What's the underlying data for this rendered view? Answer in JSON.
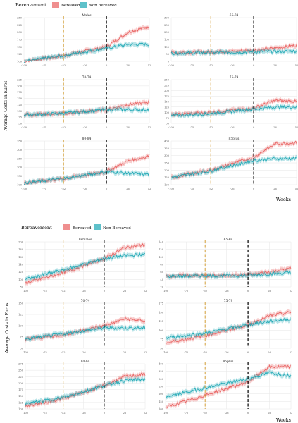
{
  "colors": {
    "bereaved": "#e8605f",
    "non_bereaved": "#1aa6b3",
    "vline_orange": "#d4a03a",
    "vline_black": "#000000",
    "grid": "#e6e6e6"
  },
  "figures": [
    {
      "legend_title": "Bereavement",
      "legend": [
        "Bereaved",
        "Non Bereaved"
      ],
      "ylabel": "Average Costs in Euros",
      "xlabel": "Weeks"
    },
    {
      "legend_title": "Bereavement",
      "legend": [
        "Bereaved",
        "Non Bereaved"
      ],
      "ylabel": "Average Costs in Euros",
      "xlabel": "Weeks"
    }
  ],
  "chart_data": [
    {
      "type": "line",
      "title": "Males",
      "x_ticks": [
        "-100",
        "-75",
        "-52",
        "-26",
        "0",
        "26",
        "52"
      ],
      "x_range": [
        -100,
        52
      ],
      "ylim": [
        100,
        250
      ],
      "y_ticks": [
        "100",
        "125",
        "150",
        "175",
        "200",
        "225",
        "250"
      ],
      "vlines": [
        -52,
        0
      ],
      "series": [
        {
          "name": "Bereaved",
          "points": [
            [
              -100,
              100
            ],
            [
              -52,
              120
            ],
            [
              0,
              150
            ],
            [
              26,
              200
            ],
            [
              52,
              220
            ]
          ]
        },
        {
          "name": "Non Bereaved",
          "points": [
            [
              -100,
              100
            ],
            [
              -52,
              120
            ],
            [
              0,
              145
            ],
            [
              26,
              158
            ],
            [
              52,
              158
            ]
          ]
        }
      ]
    },
    {
      "type": "line",
      "title": "65-69",
      "x_ticks": [
        "-100",
        "-75",
        "-52",
        "-26",
        "0",
        "26",
        "52"
      ],
      "x_range": [
        -100,
        52
      ],
      "ylim": [
        0,
        300
      ],
      "y_ticks": [
        "0",
        "50",
        "100",
        "150",
        "200",
        "250",
        "300"
      ],
      "vlines": [
        -52,
        0
      ],
      "series": [
        {
          "name": "Bereaved",
          "points": [
            [
              -100,
              60
            ],
            [
              -52,
              65
            ],
            [
              0,
              75
            ],
            [
              26,
              90
            ],
            [
              52,
              110
            ]
          ]
        },
        {
          "name": "Non Bereaved",
          "points": [
            [
              -100,
              55
            ],
            [
              -52,
              60
            ],
            [
              0,
              65
            ],
            [
              26,
              68
            ],
            [
              52,
              70
            ]
          ]
        }
      ]
    },
    {
      "type": "line",
      "title": "70-74",
      "x_ticks": [
        "-100",
        "-75",
        "-52",
        "-26",
        "0",
        "26",
        "52"
      ],
      "x_range": [
        -100,
        52
      ],
      "ylim": [
        50,
        225
      ],
      "y_ticks": [
        "50",
        "75",
        "100",
        "125",
        "150",
        "175",
        "200",
        "225"
      ],
      "vlines": [
        -52,
        0
      ],
      "series": [
        {
          "name": "Bereaved",
          "points": [
            [
              -100,
              85
            ],
            [
              -52,
              90
            ],
            [
              0,
              105
            ],
            [
              26,
              125
            ],
            [
              52,
              135
            ]
          ]
        },
        {
          "name": "Non Bereaved",
          "points": [
            [
              -100,
              85
            ],
            [
              -52,
              90
            ],
            [
              0,
              105
            ],
            [
              26,
              105
            ],
            [
              52,
              105
            ]
          ]
        }
      ]
    },
    {
      "type": "line",
      "title": "75-79",
      "x_ticks": [
        "-100",
        "-75",
        "-52",
        "-26",
        "0",
        "26",
        "52"
      ],
      "x_range": [
        -100,
        52
      ],
      "ylim": [
        50,
        250
      ],
      "y_ticks": [
        "50",
        "75",
        "100",
        "125",
        "150",
        "175",
        "200",
        "225",
        "250"
      ],
      "vlines": [
        -52,
        0
      ],
      "series": [
        {
          "name": "Bereaved",
          "points": [
            [
              -100,
              90
            ],
            [
              -52,
              100
            ],
            [
              0,
              120
            ],
            [
              26,
              155
            ],
            [
              52,
              150
            ]
          ]
        },
        {
          "name": "Non Bereaved",
          "points": [
            [
              -100,
              85
            ],
            [
              -52,
              95
            ],
            [
              0,
              115
            ],
            [
              26,
              125
            ],
            [
              52,
              125
            ]
          ]
        }
      ]
    },
    {
      "type": "line",
      "title": "80-84",
      "x_ticks": [
        "-100",
        "-75",
        "-52",
        "-26",
        "0",
        "26",
        "52"
      ],
      "x_range": [
        -100,
        52
      ],
      "ylim": [
        100,
        350
      ],
      "y_ticks": [
        "100",
        "150",
        "200",
        "250",
        "300",
        "350"
      ],
      "vlines": [
        -52,
        0
      ],
      "series": [
        {
          "name": "Bereaved",
          "points": [
            [
              -100,
              110
            ],
            [
              -52,
              135
            ],
            [
              0,
              175
            ],
            [
              26,
              235
            ],
            [
              52,
              265
            ]
          ]
        },
        {
          "name": "Non Bereaved",
          "points": [
            [
              -100,
              110
            ],
            [
              -52,
              135
            ],
            [
              0,
              175
            ],
            [
              26,
              165
            ],
            [
              52,
              160
            ]
          ]
        }
      ]
    },
    {
      "type": "line",
      "title": "85plus",
      "x_ticks": [
        "-100",
        "-75",
        "-52",
        "-26",
        "0",
        "26",
        "52"
      ],
      "x_range": [
        -100,
        52
      ],
      "ylim": [
        100,
        400
      ],
      "y_ticks": [
        "100",
        "150",
        "200",
        "250",
        "300",
        "350",
        "400"
      ],
      "vlines": [
        -52,
        0
      ],
      "series": [
        {
          "name": "Bereaved",
          "points": [
            [
              -100,
              150
            ],
            [
              -52,
              200
            ],
            [
              0,
              290
            ],
            [
              26,
              380
            ],
            [
              52,
              390
            ]
          ]
        },
        {
          "name": "Non Bereaved",
          "points": [
            [
              -100,
              150
            ],
            [
              -52,
              195
            ],
            [
              0,
              265
            ],
            [
              26,
              280
            ],
            [
              52,
              280
            ]
          ]
        }
      ]
    },
    {
      "type": "line",
      "title": "Females",
      "x_ticks": [
        "-100",
        "-75",
        "-52",
        "-26",
        "0",
        "26",
        "52"
      ],
      "x_range": [
        -100,
        52
      ],
      "ylim": [
        80,
        200
      ],
      "y_ticks": [
        "80",
        "100",
        "120",
        "140",
        "160",
        "180",
        "200"
      ],
      "vlines": [
        -52,
        0
      ],
      "series": [
        {
          "name": "Bereaved",
          "points": [
            [
              -100,
              90
            ],
            [
              -52,
              118
            ],
            [
              0,
              155
            ],
            [
              26,
              185
            ],
            [
              52,
              192
            ]
          ]
        },
        {
          "name": "Non Bereaved",
          "points": [
            [
              -100,
              100
            ],
            [
              -52,
              125
            ],
            [
              0,
              155
            ],
            [
              26,
              163
            ],
            [
              52,
              167
            ]
          ]
        }
      ]
    },
    {
      "type": "line",
      "title": "65-69",
      "x_ticks": [
        "-100",
        "-75",
        "-52",
        "-26",
        "0",
        "26",
        "52"
      ],
      "x_range": [
        -100,
        52
      ],
      "ylim": [
        20,
        140
      ],
      "y_ticks": [
        "20",
        "40",
        "60",
        "80",
        "100",
        "120",
        "140"
      ],
      "vlines": [
        -52,
        0
      ],
      "series": [
        {
          "name": "Bereaved",
          "points": [
            [
              -100,
              50
            ],
            [
              -52,
              50
            ],
            [
              0,
              52
            ],
            [
              26,
              60
            ],
            [
              52,
              70
            ]
          ]
        },
        {
          "name": "Non Bereaved",
          "points": [
            [
              -100,
              48
            ],
            [
              -52,
              50
            ],
            [
              0,
              50
            ],
            [
              26,
              55
            ],
            [
              52,
              58
            ]
          ]
        }
      ]
    },
    {
      "type": "line",
      "title": "70-74",
      "x_ticks": [
        "-100",
        "-75",
        "-52",
        "-26",
        "0",
        "26",
        "52"
      ],
      "x_range": [
        -100,
        52
      ],
      "ylim": [
        50,
        150
      ],
      "y_ticks": [
        "50",
        "75",
        "100",
        "125",
        "150"
      ],
      "vlines": [
        -52,
        0
      ],
      "series": [
        {
          "name": "Bereaved",
          "points": [
            [
              -100,
              70
            ],
            [
              -52,
              80
            ],
            [
              0,
              100
            ],
            [
              26,
              115
            ],
            [
              52,
              110
            ]
          ]
        },
        {
          "name": "Non Bereaved",
          "points": [
            [
              -100,
              70
            ],
            [
              -52,
              82
            ],
            [
              0,
              95
            ],
            [
              26,
              95
            ],
            [
              52,
              95
            ]
          ]
        }
      ]
    },
    {
      "type": "line",
      "title": "75-79",
      "x_ticks": [
        "-100",
        "-75",
        "-52",
        "-26",
        "0",
        "26",
        "52"
      ],
      "x_range": [
        -100,
        52
      ],
      "ylim": [
        50,
        175
      ],
      "y_ticks": [
        "50",
        "75",
        "100",
        "125",
        "150",
        "175"
      ],
      "vlines": [
        -52,
        0
      ],
      "series": [
        {
          "name": "Bereaved",
          "points": [
            [
              -100,
              65
            ],
            [
              -52,
              85
            ],
            [
              0,
              115
            ],
            [
              26,
              140
            ],
            [
              52,
              150
            ]
          ]
        },
        {
          "name": "Non Bereaved",
          "points": [
            [
              -100,
              78
            ],
            [
              -52,
              92
            ],
            [
              0,
              115
            ],
            [
              26,
              125
            ],
            [
              52,
              130
            ]
          ]
        }
      ]
    },
    {
      "type": "line",
      "title": "80-84",
      "x_ticks": [
        "-100",
        "-75",
        "-52",
        "-26",
        "0",
        "26",
        "52"
      ],
      "x_range": [
        -100,
        52
      ],
      "ylim": [
        100,
        275
      ],
      "y_ticks": [
        "100",
        "125",
        "150",
        "175",
        "200",
        "225",
        "250",
        "275"
      ],
      "vlines": [
        -52,
        0
      ],
      "series": [
        {
          "name": "Bereaved",
          "points": [
            [
              -100,
              110
            ],
            [
              -52,
              140
            ],
            [
              0,
              190
            ],
            [
              26,
              225
            ],
            [
              52,
              235
            ]
          ]
        },
        {
          "name": "Non Bereaved",
          "points": [
            [
              -100,
              120
            ],
            [
              -52,
              145
            ],
            [
              0,
              190
            ],
            [
              26,
              210
            ],
            [
              52,
              215
            ]
          ]
        }
      ]
    },
    {
      "type": "line",
      "title": "85plus",
      "x_ticks": [
        "-100",
        "-75",
        "-52",
        "-26",
        "0",
        "26",
        "52"
      ],
      "x_range": [
        -100,
        52
      ],
      "ylim": [
        100,
        400
      ],
      "y_ticks": [
        "100",
        "150",
        "200",
        "250",
        "300",
        "350",
        "400"
      ],
      "vlines": [
        -52,
        0
      ],
      "series": [
        {
          "name": "Bereaved",
          "points": [
            [
              -100,
              110
            ],
            [
              -52,
              190
            ],
            [
              0,
              280
            ],
            [
              26,
              380
            ],
            [
              52,
              380
            ]
          ]
        },
        {
          "name": "Non Bereaved",
          "points": [
            [
              -100,
              180
            ],
            [
              -52,
              240
            ],
            [
              0,
              300
            ],
            [
              26,
              340
            ],
            [
              52,
              320
            ]
          ]
        }
      ]
    }
  ]
}
